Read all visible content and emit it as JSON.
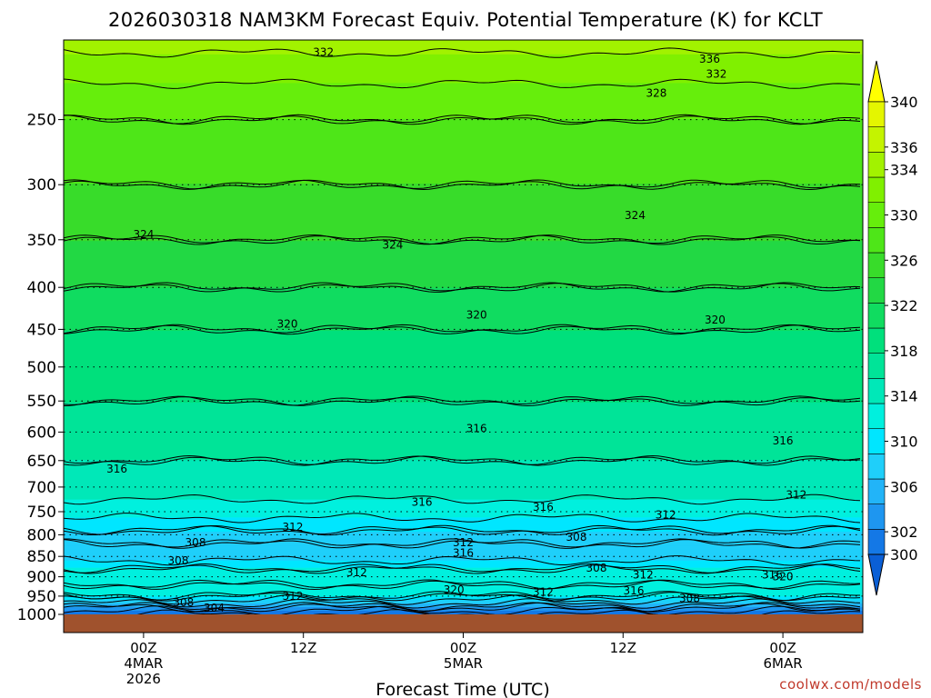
{
  "chart_data": {
    "type": "heatmap",
    "title": "2026030318 NAM3KM Forecast Equiv. Potential Temperature (K) for KCLT",
    "xlabel": "Forecast Time (UTC)",
    "ylabel": "",
    "y_scale": "pressure (log-like), inverted",
    "y_range": [
      1000,
      200
    ],
    "y_ticks": [
      1000,
      950,
      900,
      850,
      800,
      750,
      700,
      650,
      600,
      550,
      500,
      450,
      400,
      350,
      300,
      250
    ],
    "x_range_hours": [
      18,
      78
    ],
    "x_ticks": [
      {
        "hour": 24,
        "lines": [
          "00Z",
          "4MAR",
          "2026"
        ]
      },
      {
        "hour": 36,
        "lines": [
          "12Z"
        ]
      },
      {
        "hour": 48,
        "lines": [
          "00Z",
          "5MAR"
        ]
      },
      {
        "hour": 60,
        "lines": [
          "12Z"
        ]
      },
      {
        "hour": 72,
        "lines": [
          "00Z",
          "6MAR"
        ]
      }
    ],
    "grid": "dotted horizontal lines at pressure levels",
    "colorbar": {
      "levels": [
        300,
        302,
        304,
        306,
        308,
        310,
        312,
        314,
        316,
        318,
        320,
        322,
        324,
        326,
        328,
        330,
        332,
        334,
        336,
        338,
        340
      ],
      "labels": [
        300,
        302,
        306,
        310,
        314,
        318,
        322,
        326,
        330,
        334,
        336,
        340
      ],
      "colors": [
        "#0a5fd6",
        "#1478e6",
        "#1e96f0",
        "#22b4f8",
        "#1fcffa",
        "#00e6ff",
        "#00f0de",
        "#00e8b8",
        "#00e498",
        "#00e07c",
        "#10dc60",
        "#22d844",
        "#38dc2a",
        "#4ee618",
        "#66ee0c",
        "#80f000",
        "#a2f200",
        "#c4f400",
        "#e4f600",
        "#ffff00"
      ]
    },
    "profile": [
      {
        "p": 1000,
        "theta_e": 302
      },
      {
        "p": 980,
        "theta_e": 306
      },
      {
        "p": 950,
        "theta_e": 312
      },
      {
        "p": 920,
        "theta_e": 314
      },
      {
        "p": 880,
        "theta_e": 312
      },
      {
        "p": 850,
        "theta_e": 309
      },
      {
        "p": 820,
        "theta_e": 308
      },
      {
        "p": 790,
        "theta_e": 310
      },
      {
        "p": 750,
        "theta_e": 313
      },
      {
        "p": 700,
        "theta_e": 315
      },
      {
        "p": 650,
        "theta_e": 316
      },
      {
        "p": 600,
        "theta_e": 317
      },
      {
        "p": 550,
        "theta_e": 318
      },
      {
        "p": 500,
        "theta_e": 319
      },
      {
        "p": 450,
        "theta_e": 320
      },
      {
        "p": 400,
        "theta_e": 322
      },
      {
        "p": 350,
        "theta_e": 324
      },
      {
        "p": 300,
        "theta_e": 326
      },
      {
        "p": 250,
        "theta_e": 328
      },
      {
        "p": 215,
        "theta_e": 331
      },
      {
        "p": 200,
        "theta_e": 333
      }
    ],
    "contour_labels": [
      {
        "text": "332",
        "hour": 37.5,
        "p": 207
      },
      {
        "text": "336",
        "hour": 66.5,
        "p": 211
      },
      {
        "text": "332",
        "hour": 67.0,
        "p": 220
      },
      {
        "text": "328",
        "hour": 62.5,
        "p": 232
      },
      {
        "text": "324",
        "hour": 24.0,
        "p": 345
      },
      {
        "text": "324",
        "hour": 42.7,
        "p": 355
      },
      {
        "text": "324",
        "hour": 60.9,
        "p": 327
      },
      {
        "text": "320",
        "hour": 34.8,
        "p": 443
      },
      {
        "text": "320",
        "hour": 49.0,
        "p": 432
      },
      {
        "text": "320",
        "hour": 66.9,
        "p": 438
      },
      {
        "text": "316",
        "hour": 49.0,
        "p": 594
      },
      {
        "text": "316",
        "hour": 72.0,
        "p": 615
      },
      {
        "text": "316",
        "hour": 22.0,
        "p": 665
      },
      {
        "text": "316",
        "hour": 44.9,
        "p": 730
      },
      {
        "text": "316",
        "hour": 54.0,
        "p": 740
      },
      {
        "text": "312",
        "hour": 35.2,
        "p": 783
      },
      {
        "text": "312",
        "hour": 63.2,
        "p": 757
      },
      {
        "text": "312",
        "hour": 73.0,
        "p": 715
      },
      {
        "text": "308",
        "hour": 27.9,
        "p": 818
      },
      {
        "text": "308",
        "hour": 26.6,
        "p": 861
      },
      {
        "text": "308",
        "hour": 56.5,
        "p": 805
      },
      {
        "text": "312",
        "hour": 48.0,
        "p": 818
      },
      {
        "text": "316",
        "hour": 48.0,
        "p": 842
      },
      {
        "text": "312",
        "hour": 40.0,
        "p": 890
      },
      {
        "text": "308",
        "hour": 58.0,
        "p": 878
      },
      {
        "text": "312",
        "hour": 61.5,
        "p": 895
      },
      {
        "text": "316",
        "hour": 71.2,
        "p": 895
      },
      {
        "text": "320",
        "hour": 72.0,
        "p": 900
      },
      {
        "text": "320",
        "hour": 47.3,
        "p": 933
      },
      {
        "text": "312",
        "hour": 35.2,
        "p": 950
      },
      {
        "text": "312",
        "hour": 54.0,
        "p": 939
      },
      {
        "text": "316",
        "hour": 60.8,
        "p": 936
      },
      {
        "text": "308",
        "hour": 27.0,
        "p": 968
      },
      {
        "text": "308",
        "hour": 65.0,
        "p": 956
      },
      {
        "text": "304",
        "hour": 29.3,
        "p": 982
      }
    ]
  },
  "credit": "coolwx.com/models"
}
